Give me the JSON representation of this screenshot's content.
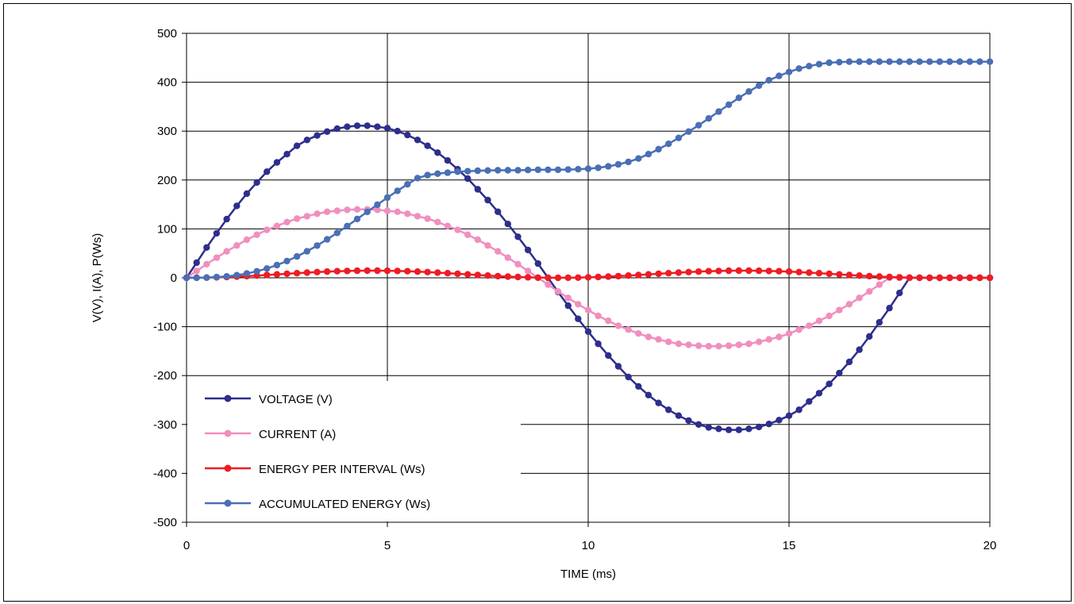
{
  "chart_data": {
    "type": "line",
    "title": "",
    "xlabel": "TIME (ms)",
    "ylabel": "V(V), I(A), P(Ws)",
    "xlim": [
      0,
      20
    ],
    "ylim": [
      -500,
      500
    ],
    "x_ticks": [
      "0",
      "5",
      "10",
      "15",
      "20"
    ],
    "y_ticks": [
      "500",
      "400",
      "300",
      "200",
      "100",
      "0",
      "-100",
      "-200",
      "-300",
      "-400",
      "-500"
    ],
    "grid": true,
    "legend_position": "bottom-left",
    "sample_interval_ms": 0.25,
    "series": [
      {
        "name": "VOLTAGE (V)",
        "color": "#2e2e8c",
        "values": [
          0,
          31,
          62,
          91,
          120,
          147,
          172,
          195,
          217,
          236,
          253,
          270,
          282,
          291,
          299,
          305,
          309,
          311,
          311,
          309,
          306,
          300,
          292,
          282,
          270,
          256,
          240,
          222,
          203,
          181,
          159,
          135,
          110,
          84,
          57,
          29,
          0,
          -29,
          -57,
          -84,
          -110,
          -135,
          -159,
          -181,
          -203,
          -222,
          -240,
          -256,
          -270,
          -282,
          -292,
          -300,
          -306,
          -309,
          -311,
          -311,
          -309,
          -305,
          -299,
          -291,
          -282,
          -270,
          -253,
          -236,
          -217,
          -195,
          -172,
          -147,
          -120,
          -91,
          -62,
          -31,
          0,
          0,
          0,
          0,
          0,
          0,
          0,
          0,
          0
        ]
      },
      {
        "name": "CURRENT (A)",
        "color": "#f08fbf",
        "values": [
          0,
          14,
          28,
          41,
          54,
          66,
          78,
          88,
          98,
          106,
          114,
          121,
          126,
          131,
          135,
          137,
          139,
          140,
          140,
          139,
          137,
          135,
          131,
          126,
          121,
          114,
          106,
          98,
          88,
          78,
          66,
          54,
          41,
          28,
          14,
          0,
          -14,
          -28,
          -41,
          -54,
          -66,
          -78,
          -88,
          -98,
          -106,
          -114,
          -121,
          -126,
          -131,
          -135,
          -137,
          -139,
          -140,
          -140,
          -139,
          -137,
          -135,
          -131,
          -126,
          -121,
          -114,
          -106,
          -98,
          -88,
          -78,
          -66,
          -54,
          -41,
          -28,
          -14,
          0,
          0,
          0,
          0,
          0,
          0,
          0,
          0,
          0,
          0,
          0
        ]
      },
      {
        "name": "ENERGY PER INTERVAL (Ws)",
        "color": "#ee1c24",
        "values": [
          0,
          0.1,
          0.4,
          0.9,
          1.6,
          2.4,
          3.4,
          4.5,
          5.7,
          7.0,
          8.2,
          9.4,
          10.6,
          11.7,
          12.6,
          13.4,
          14.0,
          14.4,
          14.6,
          14.6,
          14.4,
          14.0,
          13.4,
          12.6,
          11.7,
          10.6,
          9.4,
          8.2,
          7.0,
          5.7,
          4.5,
          3.4,
          2.4,
          1.6,
          0.9,
          0.4,
          0.1,
          0,
          0.1,
          0.4,
          0.9,
          1.6,
          2.4,
          3.4,
          4.5,
          5.7,
          7.0,
          8.2,
          9.4,
          10.6,
          11.7,
          12.6,
          13.4,
          14.0,
          14.4,
          14.6,
          14.6,
          14.4,
          14.0,
          13.4,
          12.6,
          11.7,
          10.6,
          9.4,
          8.2,
          7.0,
          5.7,
          4.5,
          3.4,
          2.4,
          1.6,
          0.9,
          0.4,
          0.1,
          0,
          0,
          0,
          0,
          0,
          0,
          0
        ]
      },
      {
        "name": "ACCUMULATED ENERGY (Ws)",
        "color": "#4a6fb5",
        "values": [
          0,
          0.1,
          0.5,
          1.4,
          3.0,
          5.4,
          8.8,
          13.3,
          19.0,
          26.0,
          34.2,
          43.6,
          54.2,
          65.9,
          78.5,
          91.9,
          105.9,
          120.3,
          134.9,
          149.5,
          163.9,
          177.9,
          191.3,
          203.9,
          210,
          213,
          215,
          217,
          218,
          219,
          219.5,
          220,
          220,
          220,
          220.5,
          221,
          221,
          221,
          221.5,
          222,
          223,
          225,
          228,
          232,
          237,
          244,
          253,
          263,
          274,
          286,
          299,
          312,
          326,
          340,
          354,
          368,
          381,
          393,
          404,
          413,
          421,
          428,
          433,
          437,
          440,
          441,
          442,
          442,
          442,
          442,
          442,
          442,
          442,
          442,
          442,
          442,
          442,
          442,
          442,
          442,
          442
        ]
      }
    ]
  }
}
